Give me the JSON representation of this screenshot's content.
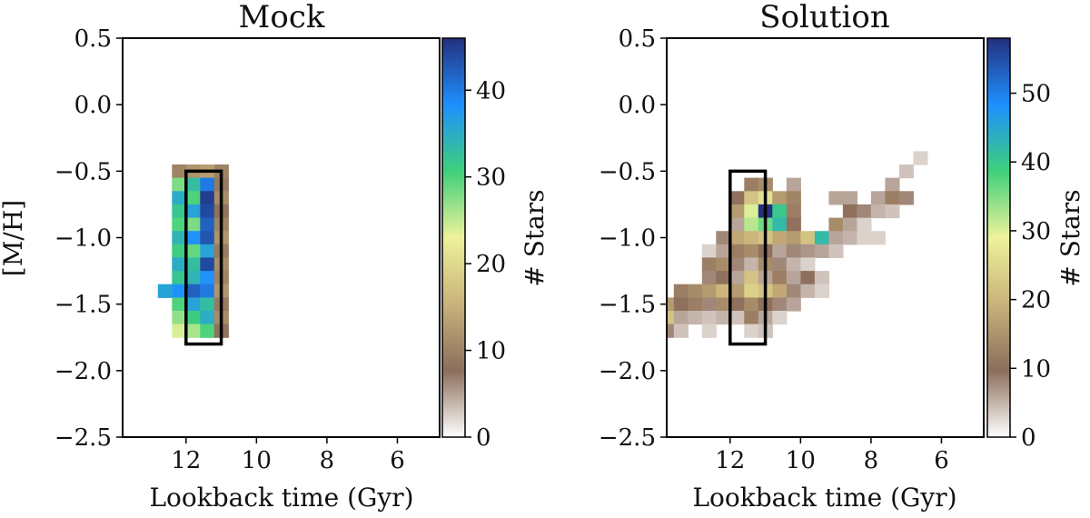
{
  "figure": {
    "description_colormap": "gist_earth_r-like: white -> brown -> tan -> yellow -> green -> blue -> navy",
    "colormap_stops": [
      "#ffffff",
      "#8d6e5c",
      "#c9b27a",
      "#eef29a",
      "#3fd07a",
      "#1e90ff",
      "#24307e"
    ]
  },
  "chart_data": [
    {
      "type": "heatmap",
      "title": "Mock",
      "xlabel": "Lookback time (Gyr)",
      "ylabel": "[M/H]",
      "xlim": [
        13.8,
        4.8
      ],
      "ylim": [
        -2.5,
        0.5
      ],
      "xticks": [
        "12",
        "10",
        "8",
        "6"
      ],
      "xtick_values": [
        12,
        10,
        8,
        6
      ],
      "yticks": [
        "0.5",
        "0.0",
        "−0.5",
        "−1.0",
        "−1.5",
        "−2.0",
        "−2.5"
      ],
      "ytick_values": [
        0.5,
        0.0,
        -0.5,
        -1.0,
        -1.5,
        -2.0,
        -2.5
      ],
      "colorbar_label": "# Stars",
      "colorbar_range": [
        0,
        46
      ],
      "colorbar_ticks": [
        "0",
        "10",
        "20",
        "30",
        "40"
      ],
      "colorbar_tick_values": [
        0,
        10,
        20,
        30,
        40
      ],
      "box": {
        "x_range": [
          11.0,
          12.0
        ],
        "y_range": [
          -1.8,
          -0.5
        ]
      },
      "cell_size": {
        "dx": 0.4,
        "dy": 0.1
      },
      "cells": [
        [
          12.2,
          -0.5,
          10
        ],
        [
          11.8,
          -0.5,
          12
        ],
        [
          11.4,
          -0.5,
          13
        ],
        [
          11.0,
          -0.5,
          10
        ],
        [
          12.2,
          -0.6,
          28
        ],
        [
          11.8,
          -0.6,
          33
        ],
        [
          11.4,
          -0.6,
          40
        ],
        [
          11.0,
          -0.6,
          9
        ],
        [
          12.2,
          -0.7,
          35
        ],
        [
          11.8,
          -0.7,
          30
        ],
        [
          11.4,
          -0.7,
          45
        ],
        [
          11.0,
          -0.7,
          11
        ],
        [
          12.2,
          -0.8,
          32
        ],
        [
          11.8,
          -0.8,
          36
        ],
        [
          11.4,
          -0.8,
          44
        ],
        [
          11.0,
          -0.8,
          8
        ],
        [
          12.2,
          -0.9,
          30
        ],
        [
          11.8,
          -0.9,
          28
        ],
        [
          11.4,
          -0.9,
          42
        ],
        [
          11.0,
          -0.9,
          10
        ],
        [
          12.2,
          -1.0,
          34
        ],
        [
          11.8,
          -1.0,
          38
        ],
        [
          11.4,
          -1.0,
          43
        ],
        [
          11.0,
          -1.0,
          12
        ],
        [
          12.2,
          -1.1,
          31
        ],
        [
          11.8,
          -1.1,
          29
        ],
        [
          11.4,
          -1.1,
          36
        ],
        [
          11.0,
          -1.1,
          9
        ],
        [
          12.2,
          -1.2,
          35
        ],
        [
          11.8,
          -1.2,
          33
        ],
        [
          11.4,
          -1.2,
          44
        ],
        [
          11.0,
          -1.2,
          11
        ],
        [
          12.2,
          -1.3,
          32
        ],
        [
          11.8,
          -1.3,
          34
        ],
        [
          11.4,
          -1.3,
          38
        ],
        [
          11.0,
          -1.3,
          10
        ],
        [
          12.2,
          -1.4,
          38
        ],
        [
          11.8,
          -1.4,
          42
        ],
        [
          11.4,
          -1.4,
          40
        ],
        [
          11.0,
          -1.4,
          12
        ],
        [
          12.2,
          -1.5,
          30
        ],
        [
          11.8,
          -1.5,
          36
        ],
        [
          11.4,
          -1.5,
          33
        ],
        [
          11.0,
          -1.5,
          9
        ],
        [
          12.2,
          -1.6,
          27
        ],
        [
          11.8,
          -1.6,
          31
        ],
        [
          11.4,
          -1.6,
          35
        ],
        [
          11.0,
          -1.6,
          11
        ],
        [
          12.2,
          -1.7,
          24
        ],
        [
          11.8,
          -1.7,
          26
        ],
        [
          11.4,
          -1.7,
          30
        ],
        [
          11.0,
          -1.7,
          8
        ],
        [
          12.6,
          -1.4,
          36
        ]
      ]
    },
    {
      "type": "heatmap",
      "title": "Solution",
      "xlabel": "Lookback time (Gyr)",
      "ylabel": "",
      "xlim": [
        13.8,
        4.8
      ],
      "ylim": [
        -2.5,
        0.5
      ],
      "xticks": [
        "12",
        "10",
        "8",
        "6"
      ],
      "xtick_values": [
        12,
        10,
        8,
        6
      ],
      "yticks": [
        "0.5",
        "0.0",
        "−0.5",
        "−1.0",
        "−1.5",
        "−2.0",
        "−2.5"
      ],
      "ytick_values": [
        0.5,
        0.0,
        -0.5,
        -1.0,
        -1.5,
        -2.0,
        -2.5
      ],
      "colorbar_label": "# Stars",
      "colorbar_range": [
        0,
        58
      ],
      "colorbar_ticks": [
        "0",
        "10",
        "20",
        "30",
        "40",
        "50"
      ],
      "colorbar_tick_values": [
        0,
        10,
        20,
        30,
        40,
        50
      ],
      "box": {
        "x_range": [
          11.0,
          12.0
        ],
        "y_range": [
          -1.8,
          -0.5
        ]
      },
      "cell_size": {
        "dx": 0.4,
        "dy": 0.1
      },
      "cells": [
        [
          6.6,
          -0.4,
          3
        ],
        [
          7.0,
          -0.5,
          4
        ],
        [
          7.4,
          -0.6,
          6
        ],
        [
          10.2,
          -0.6,
          6
        ],
        [
          11.4,
          -0.6,
          12
        ],
        [
          11.0,
          -0.6,
          14
        ],
        [
          11.8,
          -0.7,
          10
        ],
        [
          11.4,
          -0.7,
          22
        ],
        [
          11.0,
          -0.7,
          26
        ],
        [
          10.6,
          -0.7,
          16
        ],
        [
          10.2,
          -0.7,
          13
        ],
        [
          9.0,
          -0.7,
          6
        ],
        [
          8.6,
          -0.7,
          6
        ],
        [
          7.8,
          -0.7,
          6
        ],
        [
          7.4,
          -0.7,
          12
        ],
        [
          7.0,
          -0.7,
          8
        ],
        [
          11.8,
          -0.8,
          16
        ],
        [
          11.4,
          -0.8,
          30
        ],
        [
          11.0,
          -0.8,
          58
        ],
        [
          10.6,
          -0.8,
          40
        ],
        [
          10.2,
          -0.8,
          12
        ],
        [
          8.6,
          -0.8,
          10
        ],
        [
          8.2,
          -0.8,
          8
        ],
        [
          7.8,
          -0.8,
          5
        ],
        [
          7.4,
          -0.8,
          4
        ],
        [
          11.8,
          -0.9,
          6
        ],
        [
          11.4,
          -0.9,
          32
        ],
        [
          11.0,
          -0.9,
          36
        ],
        [
          10.6,
          -0.9,
          42
        ],
        [
          10.2,
          -0.9,
          10
        ],
        [
          9.0,
          -0.9,
          14
        ],
        [
          8.6,
          -0.9,
          6
        ],
        [
          8.2,
          -0.9,
          3
        ],
        [
          12.2,
          -1.0,
          8
        ],
        [
          11.8,
          -1.0,
          18
        ],
        [
          11.4,
          -1.0,
          20
        ],
        [
          11.0,
          -1.0,
          22
        ],
        [
          10.6,
          -1.0,
          18
        ],
        [
          10.2,
          -1.0,
          16
        ],
        [
          9.8,
          -1.0,
          22
        ],
        [
          9.4,
          -1.0,
          42
        ],
        [
          9.0,
          -1.0,
          6
        ],
        [
          8.6,
          -1.0,
          5
        ],
        [
          8.2,
          -1.0,
          3
        ],
        [
          7.8,
          -1.0,
          3
        ],
        [
          12.6,
          -1.1,
          3
        ],
        [
          12.2,
          -1.1,
          6
        ],
        [
          11.8,
          -1.1,
          12
        ],
        [
          11.4,
          -1.1,
          14
        ],
        [
          11.0,
          -1.1,
          10
        ],
        [
          10.6,
          -1.1,
          6
        ],
        [
          10.2,
          -1.1,
          8
        ],
        [
          9.8,
          -1.1,
          7
        ],
        [
          9.4,
          -1.1,
          6
        ],
        [
          9.0,
          -1.1,
          4
        ],
        [
          12.6,
          -1.2,
          12
        ],
        [
          12.2,
          -1.2,
          14
        ],
        [
          11.8,
          -1.2,
          8
        ],
        [
          11.4,
          -1.2,
          5
        ],
        [
          11.0,
          -1.2,
          14
        ],
        [
          10.6,
          -1.2,
          8
        ],
        [
          10.2,
          -1.2,
          5
        ],
        [
          9.8,
          -1.2,
          3
        ],
        [
          12.6,
          -1.3,
          8
        ],
        [
          12.2,
          -1.3,
          10
        ],
        [
          11.8,
          -1.3,
          6
        ],
        [
          11.4,
          -1.3,
          22
        ],
        [
          11.0,
          -1.3,
          6
        ],
        [
          10.6,
          -1.3,
          12
        ],
        [
          10.2,
          -1.3,
          6
        ],
        [
          9.8,
          -1.3,
          10
        ],
        [
          9.4,
          -1.3,
          4
        ],
        [
          13.4,
          -1.4,
          12
        ],
        [
          13.0,
          -1.4,
          14
        ],
        [
          12.6,
          -1.4,
          16
        ],
        [
          12.2,
          -1.4,
          20
        ],
        [
          11.8,
          -1.4,
          16
        ],
        [
          11.4,
          -1.4,
          24
        ],
        [
          11.0,
          -1.4,
          22
        ],
        [
          10.6,
          -1.4,
          18
        ],
        [
          10.2,
          -1.4,
          8
        ],
        [
          9.8,
          -1.4,
          5
        ],
        [
          9.4,
          -1.4,
          3
        ],
        [
          13.8,
          -1.5,
          16
        ],
        [
          13.4,
          -1.5,
          10
        ],
        [
          13.0,
          -1.5,
          12
        ],
        [
          12.6,
          -1.5,
          8
        ],
        [
          12.2,
          -1.5,
          14
        ],
        [
          11.8,
          -1.5,
          10
        ],
        [
          11.4,
          -1.5,
          14
        ],
        [
          11.0,
          -1.5,
          10
        ],
        [
          10.6,
          -1.5,
          8
        ],
        [
          10.2,
          -1.5,
          6
        ],
        [
          13.8,
          -1.6,
          22
        ],
        [
          13.4,
          -1.6,
          6
        ],
        [
          13.0,
          -1.6,
          5
        ],
        [
          12.6,
          -1.6,
          4
        ],
        [
          12.2,
          -1.6,
          5
        ],
        [
          11.8,
          -1.6,
          4
        ],
        [
          11.4,
          -1.6,
          12
        ],
        [
          11.0,
          -1.6,
          6
        ],
        [
          10.6,
          -1.6,
          3
        ],
        [
          13.8,
          -1.7,
          8
        ],
        [
          13.4,
          -1.7,
          4
        ],
        [
          12.6,
          -1.7,
          3
        ],
        [
          11.4,
          -1.7,
          3
        ],
        [
          11.0,
          -1.7,
          4
        ]
      ]
    }
  ]
}
